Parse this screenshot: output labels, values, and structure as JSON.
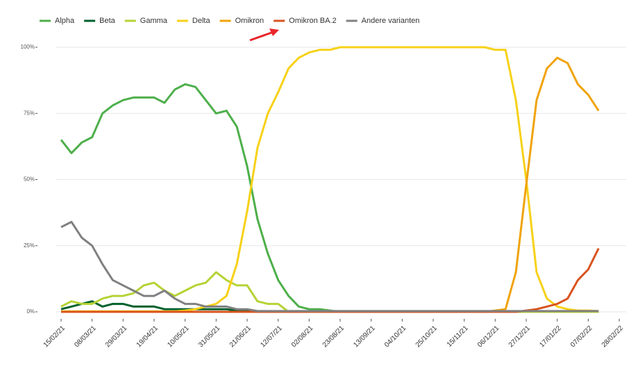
{
  "chart_data": {
    "type": "line",
    "x": [
      "15/02/21",
      "22/02/21",
      "01/03/21",
      "08/03/21",
      "15/03/21",
      "22/03/21",
      "29/03/21",
      "05/04/21",
      "12/04/21",
      "19/04/21",
      "26/04/21",
      "03/05/21",
      "10/05/21",
      "17/05/21",
      "24/05/21",
      "31/05/21",
      "07/06/21",
      "14/06/21",
      "21/06/21",
      "28/06/21",
      "05/07/21",
      "12/07/21",
      "19/07/21",
      "26/07/21",
      "02/08/21",
      "09/08/21",
      "16/08/21",
      "23/08/21",
      "30/08/21",
      "06/09/21",
      "13/09/21",
      "20/09/21",
      "27/09/21",
      "04/10/21",
      "11/10/21",
      "18/10/21",
      "25/10/21",
      "01/11/21",
      "08/11/21",
      "15/11/21",
      "22/11/21",
      "29/11/21",
      "06/12/21",
      "13/12/21",
      "20/12/21",
      "27/12/21",
      "03/01/22",
      "10/01/22",
      "17/01/22",
      "24/01/22",
      "31/01/22",
      "07/02/22",
      "14/02/22"
    ],
    "series": [
      {
        "name": "Alpha",
        "color": "#4daf4a",
        "values": [
          65,
          60,
          64,
          66,
          75,
          78,
          80,
          81,
          81,
          81,
          79,
          84,
          86,
          85,
          80,
          75,
          76,
          70,
          55,
          35,
          22,
          12,
          6,
          2,
          1,
          1,
          0.5,
          0,
          0,
          0,
          0,
          0,
          0,
          0,
          0,
          0,
          0,
          0,
          0,
          0,
          0,
          0,
          0,
          0,
          0,
          0,
          0,
          0,
          0,
          0,
          0,
          0,
          0
        ]
      },
      {
        "name": "Beta",
        "color": "#00602b",
        "values": [
          1,
          2,
          3,
          4,
          2,
          3,
          3,
          2,
          2,
          2,
          1,
          1,
          1,
          1,
          1,
          1,
          1,
          0.5,
          0.5,
          0,
          0,
          0,
          0,
          0,
          0,
          0,
          0,
          0,
          0,
          0,
          0,
          0,
          0,
          0,
          0,
          0,
          0,
          0,
          0,
          0,
          0,
          0,
          0,
          0,
          0,
          0,
          0,
          0,
          0,
          0,
          0,
          0,
          0
        ]
      },
      {
        "name": "Gamma",
        "color": "#b5d334",
        "values": [
          2,
          4,
          3,
          3,
          5,
          6,
          6,
          7,
          10,
          11,
          8,
          6,
          8,
          10,
          11,
          15,
          12,
          10,
          10,
          4,
          3,
          3,
          0,
          0,
          0,
          0,
          0,
          0,
          0,
          0,
          0,
          0,
          0,
          0,
          0,
          0,
          0,
          0,
          0,
          0,
          0,
          0,
          0,
          0,
          0,
          0,
          0,
          0,
          0,
          0,
          0,
          0,
          0
        ]
      },
      {
        "name": "Delta",
        "color": "#f7d117",
        "values": [
          0.2,
          0.2,
          0.2,
          0.2,
          0.2,
          0.2,
          0.2,
          0.2,
          0.2,
          0.2,
          0.2,
          0.2,
          0.5,
          1,
          2,
          3,
          6,
          18,
          38,
          62,
          75,
          83,
          92,
          96,
          98,
          99,
          99,
          100,
          100,
          100,
          100,
          100,
          100,
          100,
          100,
          100,
          100,
          100,
          100,
          100,
          100,
          100,
          99,
          99,
          80,
          50,
          15,
          5,
          2,
          1,
          0.5,
          0.5,
          0.3
        ]
      },
      {
        "name": "Omikron",
        "color": "#f0a30a",
        "values": [
          0,
          0,
          0,
          0,
          0,
          0,
          0,
          0,
          0,
          0,
          0,
          0,
          0,
          0,
          0,
          0,
          0,
          0,
          0,
          0,
          0,
          0,
          0,
          0,
          0,
          0,
          0,
          0,
          0,
          0,
          0,
          0,
          0,
          0,
          0,
          0,
          0,
          0,
          0,
          0,
          0,
          0,
          0.5,
          1,
          15,
          48,
          80,
          92,
          96,
          94,
          86,
          82,
          76
        ]
      },
      {
        "name": "Omikron BA.2",
        "color": "#d9531e",
        "values": [
          0,
          0,
          0,
          0,
          0,
          0,
          0,
          0,
          0,
          0,
          0,
          0,
          0,
          0,
          0,
          0,
          0,
          0,
          0,
          0,
          0,
          0,
          0,
          0,
          0,
          0,
          0,
          0,
          0,
          0,
          0,
          0,
          0,
          0,
          0,
          0,
          0,
          0,
          0,
          0,
          0,
          0,
          0,
          0,
          0,
          0.5,
          1,
          2,
          3,
          5,
          12,
          16,
          24
        ]
      },
      {
        "name": "Andere varianten",
        "color": "#808080",
        "values": [
          32,
          34,
          28,
          25,
          18,
          12,
          10,
          8,
          6,
          6,
          8,
          5,
          3,
          3,
          2,
          2,
          2,
          1,
          1,
          0.3,
          0.3,
          0.3,
          0.3,
          0.3,
          0.3,
          0.3,
          0.3,
          0.3,
          0.3,
          0.3,
          0.3,
          0.3,
          0.3,
          0.3,
          0.3,
          0.3,
          0.3,
          0.3,
          0.3,
          0.3,
          0.3,
          0.3,
          0.3,
          0.3,
          0.3,
          0.3,
          0.3,
          0.3,
          0.3,
          0.3,
          0.3,
          0.3,
          0.3
        ]
      }
    ],
    "xlim": [
      "15/02/21",
      "28/02/22"
    ],
    "xticks": [
      "15/02/21",
      "08/03/21",
      "29/03/21",
      "19/04/21",
      "10/05/21",
      "31/05/21",
      "21/06/21",
      "12/07/21",
      "02/08/21",
      "23/08/21",
      "13/09/21",
      "04/10/21",
      "25/10/21",
      "15/11/21",
      "06/12/21",
      "27/12/21",
      "17/01/22",
      "07/02/22",
      "28/02/22"
    ],
    "ylim": [
      0,
      100
    ],
    "yticks": [
      {
        "value": 0,
        "label": "0%"
      },
      {
        "value": 25,
        "label": "25%"
      },
      {
        "value": 50,
        "label": "50%"
      },
      {
        "value": 75,
        "label": "75%"
      },
      {
        "value": 100,
        "label": "100%"
      }
    ],
    "grid": true,
    "legend": "top-left"
  }
}
